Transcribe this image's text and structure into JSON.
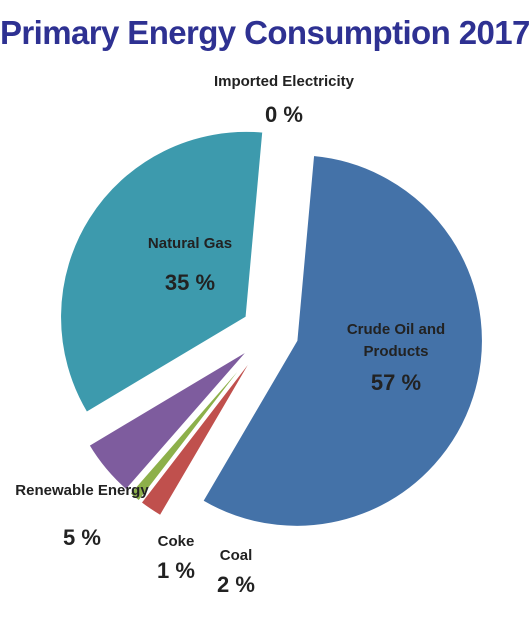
{
  "chart_data": {
    "type": "pie",
    "title": "Primary Energy Consumption 2017",
    "slices": [
      {
        "label": "Crude Oil and Products",
        "label_lines": [
          "Crude Oil and",
          "Products"
        ],
        "value": 57,
        "value_text": "57 %",
        "color": "#4472a8"
      },
      {
        "label": "Coal",
        "label_lines": [
          "Coal"
        ],
        "value": 2,
        "value_text": "2 %",
        "color": "#c0504d"
      },
      {
        "label": "Coke",
        "label_lines": [
          "Coke"
        ],
        "value": 1,
        "value_text": "1 %",
        "color": "#8db04a"
      },
      {
        "label": "Renewable Energy",
        "label_lines": [
          "Renewable Energy"
        ],
        "value": 5,
        "value_text": "5 %",
        "color": "#7e5c9e"
      },
      {
        "label": "Natural Gas",
        "label_lines": [
          "Natural Gas"
        ],
        "value": 35,
        "value_text": "35 %",
        "color": "#3d9aad"
      },
      {
        "label": "Imported Electricity",
        "label_lines": [
          "Imported Electricity"
        ],
        "value": 0,
        "value_text": "0 %",
        "color": "#e8734a"
      }
    ],
    "exploded": true,
    "legend": "none"
  }
}
